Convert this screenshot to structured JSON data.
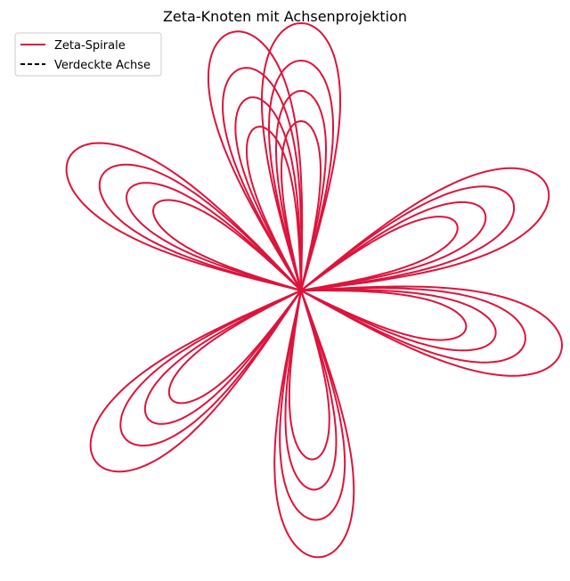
{
  "chart_data": {
    "type": "line",
    "title": "Zeta-Knoten mit Achsenprojektion",
    "xlabel": "",
    "ylabel": "",
    "grid": false,
    "axes_visible": false,
    "legend_position": "top-left",
    "series": [
      {
        "name": "Zeta-Spirale",
        "color": "#dc143c",
        "linestyle": "solid",
        "curve": "rose",
        "petals": 7,
        "loops_per_petal": 4,
        "petal_angles_deg": [
          -90,
          -23,
          13,
          86,
          140,
          210,
          255
        ]
      },
      {
        "name": "Verdeckte Achse",
        "color": "#000000",
        "linestyle": "dashed",
        "visible_in_plot": false
      }
    ]
  }
}
